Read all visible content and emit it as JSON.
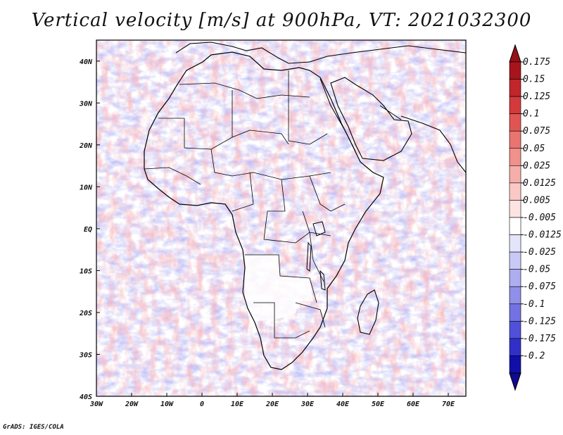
{
  "title": "Vertical velocity [m/s] at 900hPa, VT: 2021032300",
  "credit": "GrADS: IGES/COLA",
  "axes": {
    "lon_labels": [
      "30W",
      "20W",
      "10W",
      "0",
      "10E",
      "20E",
      "30E",
      "40E",
      "50E",
      "60E",
      "70E"
    ],
    "lon_values": [
      -30,
      -20,
      -10,
      0,
      10,
      20,
      30,
      40,
      50,
      60,
      70
    ],
    "lat_labels": [
      "40N",
      "30N",
      "20N",
      "10N",
      "EQ",
      "10S",
      "20S",
      "30S",
      "40S"
    ],
    "lat_values": [
      40,
      30,
      20,
      10,
      0,
      -10,
      -20,
      -30,
      -40
    ],
    "lon_range": [
      -30,
      75
    ],
    "lat_range": [
      -40,
      45
    ]
  },
  "colorbar": {
    "labels": [
      "0.175",
      "0.15",
      "0.125",
      "0.1",
      "0.075",
      "0.05",
      "0.025",
      "0.0125",
      "0.005",
      "-0.005",
      "-0.0125",
      "-0.025",
      "-0.05",
      "-0.075",
      "-0.1",
      "-0.125",
      "-0.175",
      "-0.2"
    ],
    "colors": [
      "#a8141c",
      "#c0262b",
      "#d23a3c",
      "#e05553",
      "#ea7470",
      "#f1918c",
      "#f6aea9",
      "#fac9c6",
      "#fde4e2",
      "#ffffff",
      "#e4e4fb",
      "#c9c9f6",
      "#adadf0",
      "#9090ea",
      "#7272e2",
      "#5050d8",
      "#3030c8",
      "#1010a8"
    ],
    "top_arrow_color": "#961015",
    "bottom_arrow_color": "#100a90"
  },
  "chart_data": {
    "type": "heatmap",
    "title": "Vertical velocity [m/s] at 900hPa, VT: 2021032300",
    "variable": "Vertical velocity",
    "units": "m/s",
    "level": "900hPa",
    "valid_time": "2021032300",
    "x": "longitude",
    "y": "latitude",
    "xlim": [
      -30,
      75
    ],
    "ylim": [
      -40,
      45
    ],
    "contour_levels": [
      -0.2,
      -0.175,
      -0.125,
      -0.1,
      -0.075,
      -0.05,
      -0.025,
      -0.0125,
      -0.005,
      0.005,
      0.0125,
      0.025,
      0.05,
      0.075,
      0.1,
      0.125,
      0.15,
      0.175
    ]
  }
}
